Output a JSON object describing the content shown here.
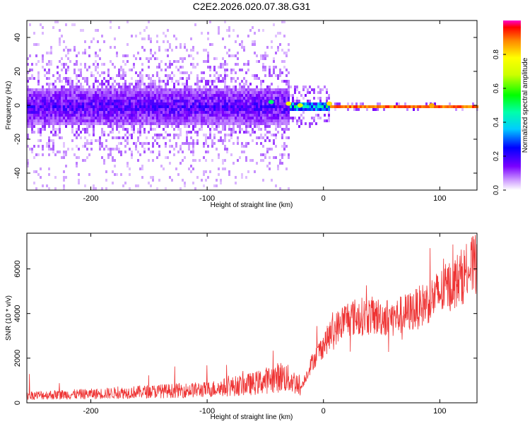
{
  "title": "C2E2.2026.020.07.38.G31",
  "chart_data": [
    {
      "type": "heatmap",
      "name": "spectrogram",
      "xlabel": "Height of straight line (km)",
      "ylabel": "Frequency (Hz)",
      "xlim": [
        -255,
        132
      ],
      "ylim": [
        -50,
        50
      ],
      "xticks": [
        -200,
        -100,
        0,
        100
      ],
      "yticks": [
        -40,
        -20,
        0,
        20,
        40
      ],
      "xtick_labels": [
        "-200",
        "-100",
        "0",
        "100"
      ],
      "ytick_labels": [
        "-40",
        "-20",
        "0",
        "20",
        "40"
      ],
      "description_bands": [
        {
          "x_from": -255,
          "x_to": -30,
          "core_halfwidth_hz": 10,
          "scatter_halfwidth_hz": 50,
          "level": 0.2
        },
        {
          "x_from": -30,
          "x_to": 5,
          "core_halfwidth_hz": 3,
          "scatter_halfwidth_hz": 12,
          "level": 0.45
        },
        {
          "x_from": 5,
          "x_to": 132,
          "core_halfwidth_hz": 1.5,
          "scatter_halfwidth_hz": 3,
          "level": 0.85
        }
      ],
      "hotspots": [
        {
          "x": -45,
          "y": 2,
          "level": 0.5
        },
        {
          "x": -30,
          "y": 1,
          "level": 0.75
        },
        {
          "x": -20,
          "y": 0,
          "level": 0.7
        },
        {
          "x": 5,
          "y": 1,
          "level": 0.8
        },
        {
          "x": 93,
          "y": 0,
          "level": 0.85
        }
      ]
    },
    {
      "type": "colorbar",
      "name": "colorbar",
      "label": "Normalized spectral amplitude",
      "range": [
        0,
        1
      ],
      "ticks": [
        0.0,
        0.2,
        0.4,
        0.6,
        0.8
      ],
      "tick_labels": [
        "0.0",
        "0.2",
        "0.4",
        "0.6",
        "0.8"
      ]
    },
    {
      "type": "line",
      "name": "snr",
      "xlabel": "Height of straight line (km)",
      "ylabel": "SNR (10 * v/v)",
      "xlim": [
        -255,
        132
      ],
      "ylim": [
        0,
        7600
      ],
      "xticks": [
        -200,
        -100,
        0,
        100
      ],
      "yticks": [
        0,
        2000,
        4000,
        6000
      ],
      "xtick_labels": [
        "-200",
        "-100",
        "0",
        "100"
      ],
      "ytick_labels": [
        "0",
        "2000",
        "4000",
        "6000"
      ],
      "color": "#ee3333",
      "trend": {
        "x": [
          -255,
          -200,
          -150,
          -100,
          -60,
          -35,
          -20,
          -10,
          0,
          10,
          20,
          40,
          60,
          80,
          100,
          120,
          132
        ],
        "y": [
          250,
          300,
          380,
          450,
          650,
          900,
          600,
          1800,
          2600,
          3300,
          3800,
          3900,
          3800,
          4200,
          4900,
          5700,
          6300
        ]
      }
    }
  ]
}
